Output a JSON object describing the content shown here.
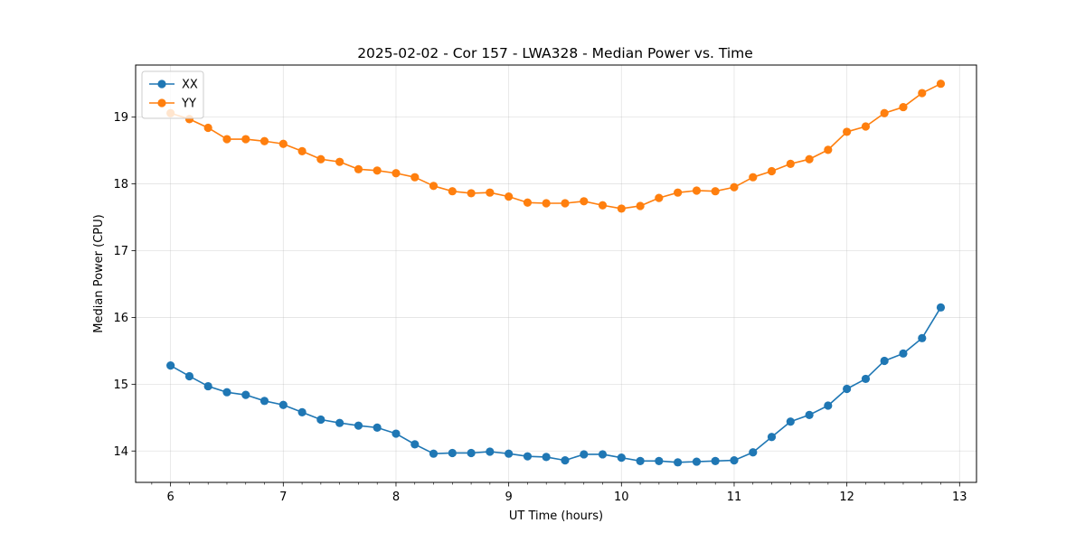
{
  "chart_data": {
    "type": "line",
    "title": "2025-02-02 - Cor 157 - LWA328 - Median Power vs. Time",
    "xlabel": "UT Time (hours)",
    "ylabel": "Median Power (CPU)",
    "xlim": [
      5.69,
      13.15
    ],
    "ylim": [
      13.53,
      19.78
    ],
    "xticks": [
      6,
      7,
      8,
      9,
      10,
      11,
      12,
      13
    ],
    "yticks": [
      14,
      15,
      16,
      17,
      18,
      19
    ],
    "grid": true,
    "legend_position": "top-left",
    "x": [
      6.0,
      6.167,
      6.333,
      6.5,
      6.667,
      6.833,
      7.0,
      7.167,
      7.333,
      7.5,
      7.667,
      7.833,
      8.0,
      8.167,
      8.333,
      8.5,
      8.667,
      8.833,
      9.0,
      9.167,
      9.333,
      9.5,
      9.667,
      9.833,
      10.0,
      10.167,
      10.333,
      10.5,
      10.667,
      10.833,
      11.0,
      11.167,
      11.333,
      11.5,
      11.667,
      11.833,
      12.0,
      12.167,
      12.333,
      12.5,
      12.667,
      12.833
    ],
    "series": [
      {
        "name": "XX",
        "color": "#1f77b4",
        "values": [
          15.28,
          15.12,
          14.97,
          14.88,
          14.84,
          14.75,
          14.69,
          14.58,
          14.47,
          14.42,
          14.38,
          14.35,
          14.26,
          14.1,
          13.96,
          13.97,
          13.97,
          13.99,
          13.96,
          13.92,
          13.91,
          13.86,
          13.95,
          13.95,
          13.9,
          13.85,
          13.85,
          13.83,
          13.84,
          13.85,
          13.86,
          13.98,
          14.21,
          14.44,
          14.54,
          14.68,
          14.93,
          15.08,
          15.35,
          15.46,
          15.69,
          16.15
        ]
      },
      {
        "name": "YY",
        "color": "#ff7f0e",
        "values": [
          19.06,
          18.97,
          18.84,
          18.67,
          18.67,
          18.64,
          18.6,
          18.49,
          18.37,
          18.33,
          18.22,
          18.2,
          18.16,
          18.1,
          17.97,
          17.89,
          17.86,
          17.87,
          17.81,
          17.72,
          17.71,
          17.71,
          17.74,
          17.68,
          17.63,
          17.67,
          17.79,
          17.87,
          17.9,
          17.89,
          17.95,
          18.1,
          18.19,
          18.3,
          18.37,
          18.51,
          18.78,
          18.86,
          19.06,
          19.15,
          19.36,
          19.5
        ]
      }
    ]
  }
}
